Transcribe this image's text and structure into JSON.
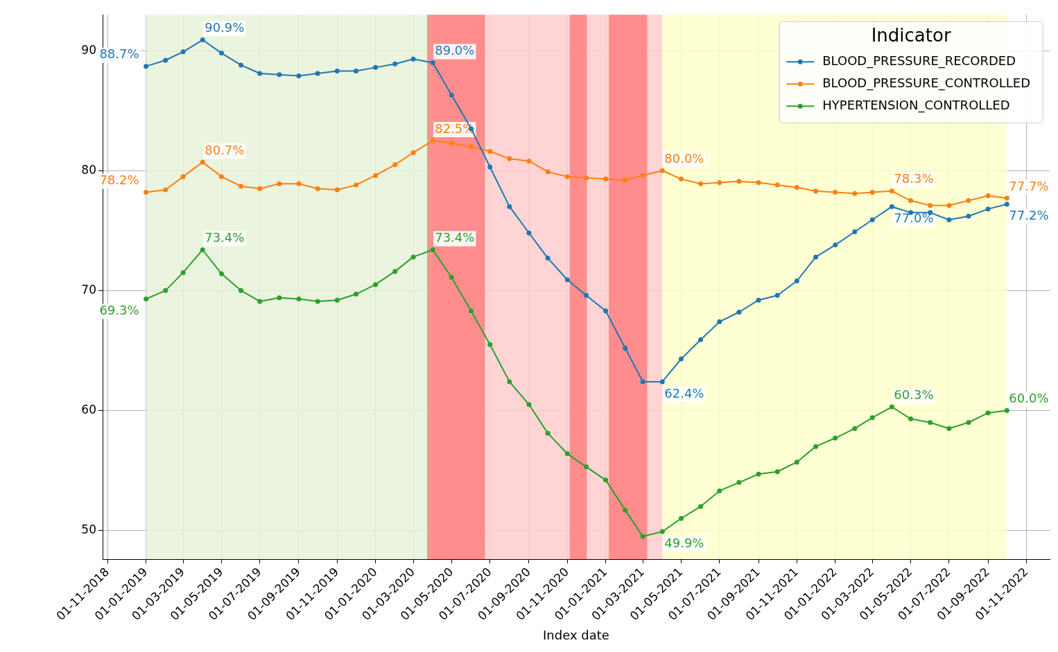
{
  "chart_data": {
    "type": "line",
    "xlabel": "Index date",
    "legend_title": "Indicator",
    "legend": "top right",
    "grid": true,
    "marker": "circle",
    "line_style": "solid",
    "x": [
      "2019-01-01",
      "2019-02-01",
      "2019-03-01",
      "2019-04-01",
      "2019-05-01",
      "2019-06-01",
      "2019-07-01",
      "2019-08-01",
      "2019-09-01",
      "2019-10-01",
      "2019-11-01",
      "2019-12-01",
      "2020-01-01",
      "2020-02-01",
      "2020-03-01",
      "2020-04-01",
      "2020-05-01",
      "2020-06-01",
      "2020-07-01",
      "2020-08-01",
      "2020-09-01",
      "2020-10-01",
      "2020-11-01",
      "2020-12-01",
      "2021-01-01",
      "2021-02-01",
      "2021-03-01",
      "2021-04-01",
      "2021-05-01",
      "2021-06-01",
      "2021-07-01",
      "2021-08-01",
      "2021-09-01",
      "2021-10-01",
      "2021-11-01",
      "2021-12-01",
      "2022-01-01",
      "2022-02-01",
      "2022-03-01",
      "2022-04-01",
      "2022-05-01",
      "2022-06-01",
      "2022-07-01",
      "2022-08-01",
      "2022-09-01",
      "2022-10-01"
    ],
    "series": [
      {
        "name": "BLOOD_PRESSURE_RECORDED",
        "color": "#1f77b4",
        "values": [
          88.7,
          89.2,
          89.9,
          90.9,
          89.8,
          88.8,
          88.1,
          88.0,
          87.9,
          88.1,
          88.3,
          88.3,
          88.6,
          88.9,
          89.3,
          89.0,
          86.3,
          83.5,
          80.3,
          77.0,
          74.8,
          72.7,
          70.9,
          69.6,
          68.3,
          65.2,
          62.4,
          62.4,
          64.3,
          65.9,
          67.4,
          68.2,
          69.2,
          69.6,
          70.8,
          72.8,
          73.8,
          74.9,
          75.9,
          77.0,
          76.5,
          76.5,
          75.9,
          76.2,
          76.8,
          77.2
        ],
        "value_labels": [
          "88.7%",
          null,
          null,
          "90.9%",
          null,
          null,
          null,
          null,
          null,
          null,
          null,
          null,
          null,
          null,
          null,
          "89.0%",
          null,
          null,
          null,
          null,
          null,
          null,
          null,
          null,
          null,
          null,
          null,
          "62.4%",
          null,
          null,
          null,
          null,
          null,
          null,
          null,
          null,
          null,
          null,
          null,
          "77.0%",
          null,
          null,
          null,
          null,
          null,
          "77.2%"
        ]
      },
      {
        "name": "BLOOD_PRESSURE_CONTROLLED",
        "color": "#ff7f0e",
        "values": [
          78.2,
          78.4,
          79.5,
          80.7,
          79.5,
          78.7,
          78.5,
          78.9,
          78.9,
          78.5,
          78.4,
          78.8,
          79.6,
          80.5,
          81.5,
          82.5,
          82.3,
          82.0,
          81.6,
          81.0,
          80.8,
          79.9,
          79.5,
          79.4,
          79.3,
          79.2,
          79.6,
          80.0,
          79.3,
          78.9,
          79.0,
          79.1,
          79.0,
          78.8,
          78.6,
          78.3,
          78.2,
          78.1,
          78.2,
          78.3,
          77.5,
          77.1,
          77.1,
          77.5,
          77.9,
          77.7
        ],
        "value_labels": [
          "78.2%",
          null,
          null,
          "80.7%",
          null,
          null,
          null,
          null,
          null,
          null,
          null,
          null,
          null,
          null,
          null,
          "82.5%",
          null,
          null,
          null,
          null,
          null,
          null,
          null,
          null,
          null,
          null,
          null,
          "80.0%",
          null,
          null,
          null,
          null,
          null,
          null,
          null,
          null,
          null,
          null,
          null,
          "78.3%",
          null,
          null,
          null,
          null,
          null,
          "77.7%"
        ]
      },
      {
        "name": "HYPERTENSION_CONTROLLED",
        "color": "#2ca02c",
        "values": [
          69.3,
          70.0,
          71.5,
          73.4,
          71.4,
          70.0,
          69.1,
          69.4,
          69.3,
          69.1,
          69.2,
          69.7,
          70.5,
          71.6,
          72.8,
          73.4,
          71.1,
          68.3,
          65.5,
          62.4,
          60.5,
          58.1,
          56.4,
          55.3,
          54.2,
          51.7,
          49.5,
          49.9,
          51.0,
          52.0,
          53.3,
          54.0,
          54.7,
          54.9,
          55.7,
          57.0,
          57.7,
          58.5,
          59.4,
          60.3,
          59.3,
          59.0,
          58.5,
          59.0,
          59.8,
          60.0
        ],
        "value_labels": [
          "69.3%",
          null,
          null,
          "73.4%",
          null,
          null,
          null,
          null,
          null,
          null,
          null,
          null,
          null,
          null,
          null,
          "73.4%",
          null,
          null,
          null,
          null,
          null,
          null,
          null,
          null,
          null,
          null,
          null,
          "49.9%",
          null,
          null,
          null,
          null,
          null,
          null,
          null,
          null,
          null,
          null,
          null,
          "60.3%",
          null,
          null,
          null,
          null,
          null,
          "60.0%"
        ]
      }
    ],
    "xlim": [
      "2018-10-24",
      "2022-12-08"
    ],
    "xticks": [
      {
        "value": "2018-11-01",
        "label": "01-11-2018"
      },
      {
        "value": "2019-01-01",
        "label": "01-01-2019"
      },
      {
        "value": "2019-03-01",
        "label": "01-03-2019"
      },
      {
        "value": "2019-05-01",
        "label": "01-05-2019"
      },
      {
        "value": "2019-07-01",
        "label": "01-07-2019"
      },
      {
        "value": "2019-09-01",
        "label": "01-09-2019"
      },
      {
        "value": "2019-11-01",
        "label": "01-11-2019"
      },
      {
        "value": "2020-01-01",
        "label": "01-01-2020"
      },
      {
        "value": "2020-03-01",
        "label": "01-03-2020"
      },
      {
        "value": "2020-05-01",
        "label": "01-05-2020"
      },
      {
        "value": "2020-07-01",
        "label": "01-07-2020"
      },
      {
        "value": "2020-09-01",
        "label": "01-09-2020"
      },
      {
        "value": "2020-11-01",
        "label": "01-11-2020"
      },
      {
        "value": "2021-01-01",
        "label": "01-01-2021"
      },
      {
        "value": "2021-03-01",
        "label": "01-03-2021"
      },
      {
        "value": "2021-05-01",
        "label": "01-05-2021"
      },
      {
        "value": "2021-07-01",
        "label": "01-07-2021"
      },
      {
        "value": "2021-09-01",
        "label": "01-09-2021"
      },
      {
        "value": "2021-11-01",
        "label": "01-11-2021"
      },
      {
        "value": "2022-01-01",
        "label": "01-01-2022"
      },
      {
        "value": "2022-03-01",
        "label": "01-03-2022"
      },
      {
        "value": "2022-05-01",
        "label": "01-05-2022"
      },
      {
        "value": "2022-07-01",
        "label": "01-07-2022"
      },
      {
        "value": "2022-09-01",
        "label": "01-09-2022"
      },
      {
        "value": "2022-11-01",
        "label": "01-11-2022"
      }
    ],
    "ylim": [
      47.6,
      93.0
    ],
    "yticks": [
      50,
      60,
      70,
      80,
      90
    ],
    "bands": [
      {
        "axis": "x",
        "from": "2019-01-01",
        "to": "2020-04-01",
        "color": "#e6f2d9"
      },
      {
        "axis": "x",
        "from": "2020-04-01",
        "to": "2021-04-01",
        "color": "#ffcccc"
      },
      {
        "axis": "x",
        "from": "2021-04-01",
        "to": "2022-10-01",
        "color": "#ffffcc"
      },
      {
        "axis": "x",
        "from": "2020-03-23",
        "to": "2020-06-23",
        "color": "#ff8080"
      },
      {
        "axis": "x",
        "from": "2020-11-05",
        "to": "2020-12-02",
        "color": "#ff8080"
      },
      {
        "axis": "x",
        "from": "2021-01-06",
        "to": "2021-03-08",
        "color": "#ff8080"
      }
    ]
  }
}
